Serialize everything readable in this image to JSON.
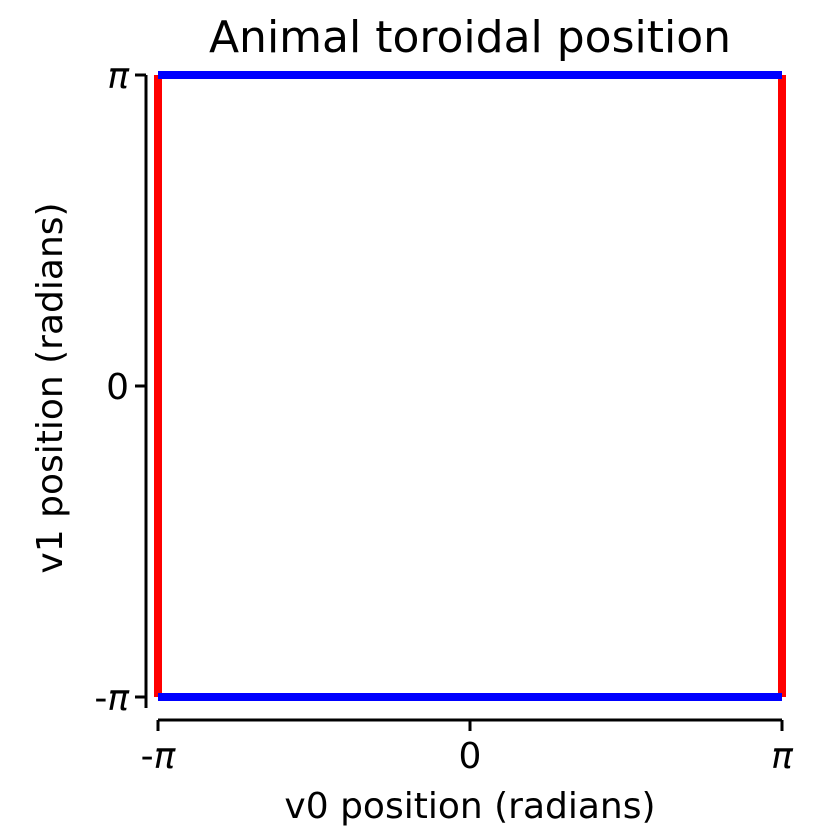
{
  "chart_data": {
    "type": "line",
    "title": "Animal toroidal position",
    "xlabel": "v0 position (radians)",
    "ylabel": "v1 position (radians)",
    "xlim": [
      -3.14159,
      3.14159
    ],
    "ylim": [
      -3.14159,
      3.14159
    ],
    "x_ticks": [
      {
        "value": -3.14159,
        "prefix": "-",
        "symbol": "π"
      },
      {
        "value": 0,
        "prefix": "",
        "symbol": "0"
      },
      {
        "value": 3.14159,
        "prefix": "",
        "symbol": "π"
      }
    ],
    "y_ticks": [
      {
        "value": -3.14159,
        "prefix": "-",
        "symbol": "π"
      },
      {
        "value": 0,
        "prefix": "",
        "symbol": "0"
      },
      {
        "value": 3.14159,
        "prefix": "",
        "symbol": "π"
      }
    ],
    "grid": false,
    "legend": "none",
    "spines": [
      "left",
      "bottom"
    ],
    "series": [
      {
        "color": "#ff0000",
        "x": [
          -3.14159,
          -3.14159
        ],
        "y": [
          -3.14159,
          3.14159
        ]
      },
      {
        "color": "#ff0000",
        "x": [
          3.14159,
          3.14159
        ],
        "y": [
          -3.14159,
          3.14159
        ]
      },
      {
        "color": "#0000ff",
        "x": [
          -3.14159,
          3.14159
        ],
        "y": [
          3.14159,
          3.14159
        ]
      },
      {
        "color": "#0000ff",
        "x": [
          -3.14159,
          3.14159
        ],
        "y": [
          -3.14159,
          -3.14159
        ]
      }
    ]
  }
}
